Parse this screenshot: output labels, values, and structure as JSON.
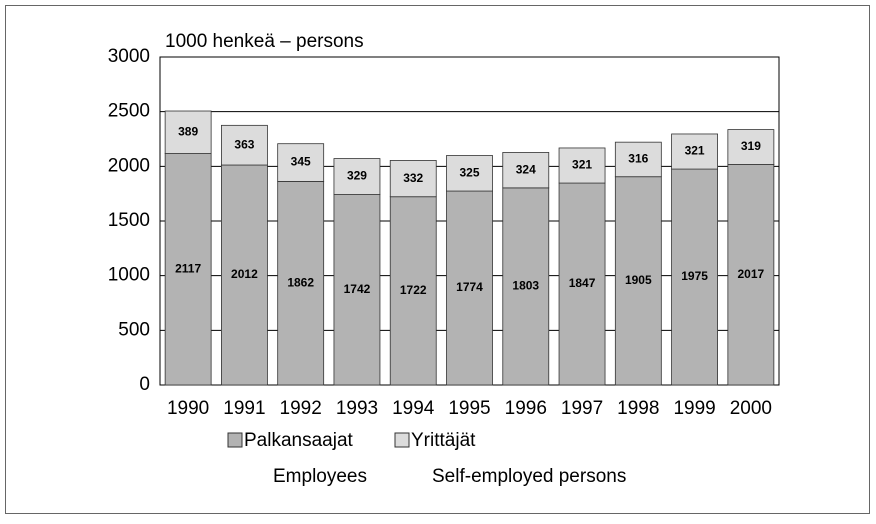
{
  "chart_data": {
    "type": "stacked_bar",
    "ylabel": "1000 henkeä – persons",
    "categories": [
      "1990",
      "1991",
      "1992",
      "1993",
      "1994",
      "1995",
      "1996",
      "1997",
      "1998",
      "1999",
      "2000"
    ],
    "series": [
      {
        "name": "Palkansaajat",
        "translation": "Employees",
        "color": "#b3b3b3",
        "values": [
          2117,
          2012,
          1862,
          1742,
          1722,
          1774,
          1803,
          1847,
          1905,
          1975,
          2017
        ]
      },
      {
        "name": "Yrittäjät",
        "translation": "Self-employed persons",
        "color": "#dcdcdc",
        "values": [
          389,
          363,
          345,
          329,
          332,
          325,
          324,
          321,
          316,
          321,
          319
        ]
      }
    ],
    "ylim": [
      0,
      3000
    ],
    "yticks": [
      0,
      500,
      1000,
      1500,
      2000,
      2500,
      3000
    ],
    "grid": true
  }
}
